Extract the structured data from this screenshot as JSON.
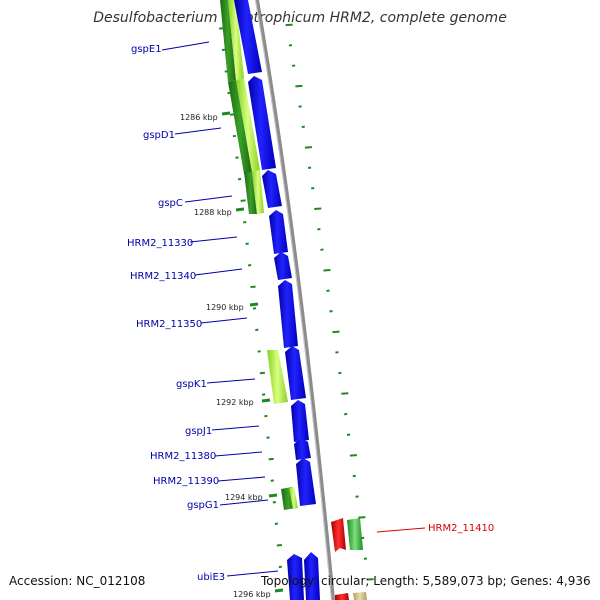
{
  "title": "Desulfobacterium autotrophicum HRM2, complete genome",
  "footer": {
    "accession": "Accession: NC_012108",
    "topology": "Topology: circular; Length: 5,589,073 bp; Genes: 4,936"
  },
  "colors": {
    "backbone": "#8c8c8c",
    "forward_gene": "#0000ee",
    "reverse_gene_dark": "#2a8a1a",
    "reverse_gene_light": "#a8f040",
    "highlight": "#ee0000",
    "label": "#0000aa",
    "highlight_label": "#dd0000",
    "gc_tick": "#1f8a1f"
  },
  "scale_labels": [
    "1286 kbp",
    "1288 kbp",
    "1290 kbp",
    "1292 kbp",
    "1294 kbp",
    "1296 kbp"
  ],
  "gene_labels": [
    {
      "name": "gspE1",
      "type": "left"
    },
    {
      "name": "gspD1",
      "type": "left"
    },
    {
      "name": "gspC",
      "type": "left"
    },
    {
      "name": "HRM2_11330",
      "type": "left"
    },
    {
      "name": "HRM2_11340",
      "type": "left"
    },
    {
      "name": "HRM2_11350",
      "type": "left"
    },
    {
      "name": "gspK1",
      "type": "left"
    },
    {
      "name": "gspJ1",
      "type": "left"
    },
    {
      "name": "HRM2_11380",
      "type": "left"
    },
    {
      "name": "HRM2_11390",
      "type": "left"
    },
    {
      "name": "gspG1",
      "type": "left"
    },
    {
      "name": "ubiE3",
      "type": "left"
    },
    {
      "name": "HRM2_11410",
      "type": "right"
    }
  ]
}
